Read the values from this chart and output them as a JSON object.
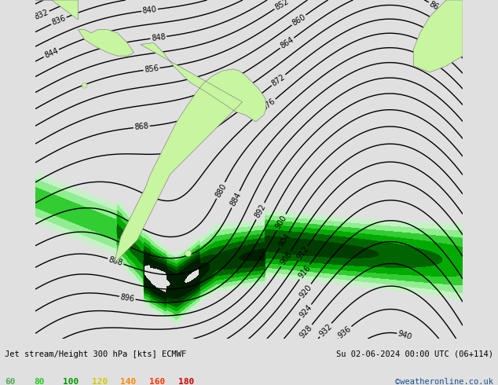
{
  "title_left": "Jet stream/Height 300 hPa [kts] ECMWF",
  "title_right": "Su 02-06-2024 00:00 UTC (06+114)",
  "credit": "©weatheronline.co.uk",
  "legend_values": [
    "60",
    "80",
    "100",
    "120",
    "140",
    "160",
    "180"
  ],
  "legend_text_colors": [
    "#55aa55",
    "#22cc22",
    "#009900",
    "#cccc00",
    "#ff8800",
    "#ff3300",
    "#cc0000"
  ],
  "wind_levels": [
    60,
    80,
    100,
    120,
    140,
    160,
    180,
    220
  ],
  "wind_fill_colors": [
    "#c8f0c8",
    "#90ee90",
    "#32cd32",
    "#00aa00",
    "#006400",
    "#003c00",
    "#001e00"
  ],
  "background_color": "#e0e0e0",
  "land_color": "#c8f5a0",
  "land_edge_color": "#888888",
  "contour_color": "#000000",
  "contour_linewidth": 1.0,
  "contour_label_fontsize": 7,
  "text_color": "#000000",
  "credit_color": "#1a5296",
  "lon_min": -105,
  "lon_max": 25,
  "lat_min": -78,
  "lat_max": 25
}
